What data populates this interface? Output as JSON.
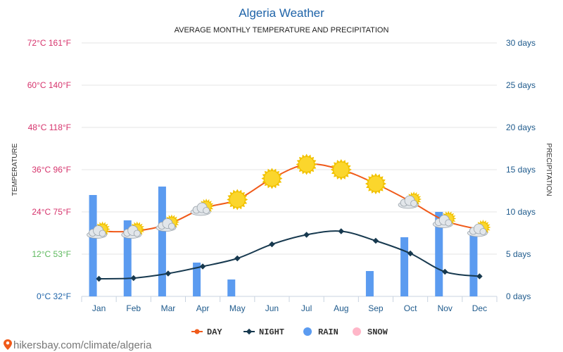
{
  "chart_data": {
    "type": "line",
    "title": "Algeria Weather",
    "subtitle": "AVERAGE MONTHLY TEMPERATURE AND PRECIPITATION",
    "categories": [
      "Jan",
      "Feb",
      "Mar",
      "Apr",
      "May",
      "Jun",
      "Jul",
      "Aug",
      "Sep",
      "Oct",
      "Nov",
      "Dec"
    ],
    "ylabel": "TEMPERATURE",
    "y2label": "PRECIPITATION",
    "ylim": [
      0,
      72
    ],
    "y2lim": [
      0,
      30
    ],
    "y_ticks": [
      {
        "value": 0,
        "label": "0°C 32°F",
        "color": "#1e63a8"
      },
      {
        "value": 12,
        "label": "12°C 53°F",
        "color": "#5cb85c"
      },
      {
        "value": 24,
        "label": "24°C 75°F",
        "color": "#d6336c"
      },
      {
        "value": 36,
        "label": "36°C 96°F",
        "color": "#d6336c"
      },
      {
        "value": 48,
        "label": "48°C 118°F",
        "color": "#d6336c"
      },
      {
        "value": 60,
        "label": "60°C 140°F",
        "color": "#d6336c"
      },
      {
        "value": 72,
        "label": "72°C 161°F",
        "color": "#d6336c"
      }
    ],
    "y2_ticks": [
      {
        "value": 0,
        "label": "0 days"
      },
      {
        "value": 5,
        "label": "5 days"
      },
      {
        "value": 10,
        "label": "10 days"
      },
      {
        "value": 15,
        "label": "15 days"
      },
      {
        "value": 20,
        "label": "20 days"
      },
      {
        "value": 25,
        "label": "25 days"
      },
      {
        "value": 30,
        "label": "30 days"
      }
    ],
    "series": [
      {
        "name": "DAY",
        "type": "line",
        "axis": "temperature",
        "color": "#f05a1a",
        "values": [
          18.5,
          18.5,
          20.5,
          25,
          27.5,
          33.5,
          37.5,
          36,
          32,
          27,
          21.5,
          19
        ],
        "icons": [
          "cloudy-sun-icon",
          "cloudy-sun-icon",
          "cloudy-sun-icon",
          "cloudy-sun-icon",
          "sun-icon",
          "sun-icon",
          "sun-icon",
          "sun-icon",
          "sun-icon",
          "cloudy-sun-icon",
          "cloudy-sun-icon",
          "cloudy-sun-icon"
        ]
      },
      {
        "name": "NIGHT",
        "type": "line",
        "axis": "temperature",
        "color": "#17394f",
        "values": [
          5,
          5.2,
          6.5,
          8.5,
          10.8,
          14.8,
          17.5,
          18.5,
          15.8,
          12.2,
          7,
          5.7
        ]
      },
      {
        "name": "RAIN",
        "type": "bar",
        "axis": "precipitation",
        "color": "#5b9bf0",
        "values": [
          12,
          9,
          13,
          4,
          2,
          0,
          0,
          0,
          3,
          7,
          10,
          8
        ]
      },
      {
        "name": "SNOW",
        "type": "bar",
        "axis": "precipitation",
        "color": "#ffb6c8",
        "values": [
          0,
          0,
          0,
          0,
          0,
          0,
          0,
          0,
          0,
          0,
          0,
          0
        ]
      }
    ],
    "legend": {
      "position": "bottom-center"
    },
    "grid": true
  },
  "watermark": "hikersbay.com/climate/algeria",
  "colors": {
    "gridline": "#e6e6e6",
    "axis": "#c8d3e0",
    "title": "#1e63a8"
  }
}
